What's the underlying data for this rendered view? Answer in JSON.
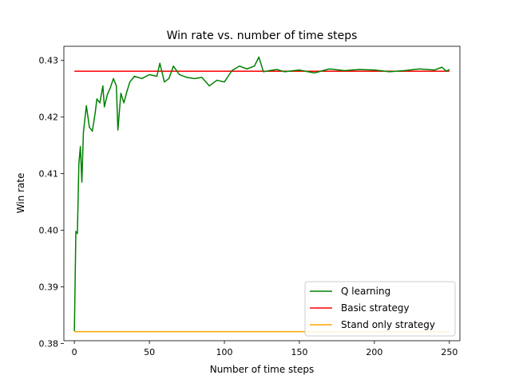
{
  "chart_data": {
    "type": "line",
    "title": "Win rate vs. number of time steps",
    "xlabel": "Number of time steps",
    "ylabel": "Win rate",
    "xlim": [
      -7,
      257
    ],
    "ylim": [
      0.3805,
      0.4325
    ],
    "xticks": [
      0,
      50,
      100,
      150,
      200,
      250
    ],
    "xtick_labels": [
      "0",
      "50",
      "100",
      "150",
      "200",
      "250"
    ],
    "yticks": [
      0.38,
      0.39,
      0.4,
      0.41,
      0.42,
      0.43
    ],
    "ytick_labels": [
      "0.38",
      "0.39",
      "0.40",
      "0.41",
      "0.42",
      "0.43"
    ],
    "grid": false,
    "legend_position": "lower-right",
    "series": [
      {
        "name": "Q learning",
        "color": "#008000",
        "x": [
          0,
          1,
          2,
          3,
          4,
          5,
          6,
          8,
          10,
          12,
          14,
          15,
          17,
          19,
          20,
          22,
          24,
          26,
          28,
          29,
          31,
          33,
          35,
          37,
          40,
          45,
          50,
          55,
          57,
          60,
          63,
          66,
          70,
          75,
          80,
          85,
          90,
          95,
          100,
          105,
          110,
          115,
          120,
          123,
          126,
          130,
          135,
          140,
          150,
          160,
          170,
          180,
          190,
          200,
          210,
          220,
          230,
          240,
          245,
          248,
          250
        ],
        "y": [
          0.3822,
          0.3998,
          0.3994,
          0.4118,
          0.4148,
          0.4085,
          0.4172,
          0.422,
          0.4182,
          0.4175,
          0.421,
          0.4232,
          0.4225,
          0.4255,
          0.4218,
          0.424,
          0.4252,
          0.4268,
          0.4255,
          0.4177,
          0.4242,
          0.4225,
          0.4245,
          0.4262,
          0.4272,
          0.4268,
          0.4275,
          0.4272,
          0.4295,
          0.4262,
          0.4268,
          0.429,
          0.4275,
          0.427,
          0.4268,
          0.427,
          0.4255,
          0.4265,
          0.4262,
          0.4282,
          0.429,
          0.4285,
          0.429,
          0.4306,
          0.428,
          0.4282,
          0.4284,
          0.428,
          0.4283,
          0.4278,
          0.4285,
          0.4282,
          0.4284,
          0.4283,
          0.428,
          0.4282,
          0.4285,
          0.4283,
          0.4288,
          0.4281,
          0.4284
        ]
      },
      {
        "name": "Basic strategy",
        "color": "#ff0000",
        "x": [
          0,
          250
        ],
        "y": [
          0.4281,
          0.4281
        ]
      },
      {
        "name": "Stand only strategy",
        "color": "#ffa500",
        "x": [
          0,
          250
        ],
        "y": [
          0.3821,
          0.3821
        ]
      }
    ]
  }
}
